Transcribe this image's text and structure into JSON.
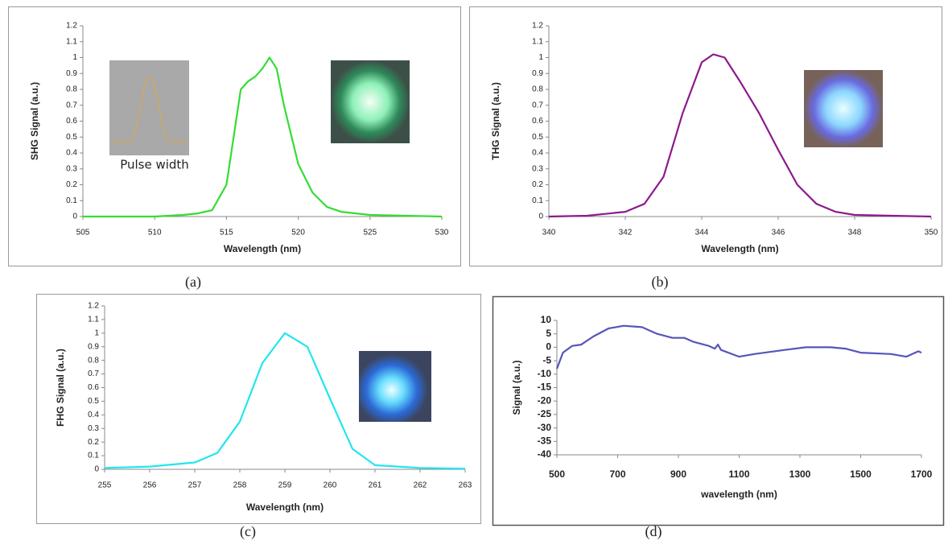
{
  "chart_data": [
    {
      "type": "line",
      "caption": "(a)",
      "xlabel": "Wavelength (nm)",
      "ylabel": "SHG Signal (a.u.)",
      "annotation": "Pulse width",
      "color": "#33dd33",
      "x": [
        505,
        510,
        512,
        513,
        514,
        515,
        516,
        516.5,
        517,
        517.5,
        518,
        518.5,
        519,
        520,
        521,
        522,
        523,
        525,
        530
      ],
      "values": [
        0,
        0,
        0.01,
        0.02,
        0.04,
        0.2,
        0.8,
        0.85,
        0.88,
        0.93,
        1.0,
        0.93,
        0.7,
        0.33,
        0.15,
        0.06,
        0.03,
        0.01,
        0
      ],
      "xlim": [
        505,
        530
      ],
      "xticks": [
        505,
        510,
        515,
        520,
        525,
        530
      ],
      "ylim": [
        0,
        1.2
      ],
      "yticks": [
        0,
        0.1,
        0.2,
        0.3,
        0.4,
        0.5,
        0.6,
        0.7,
        0.8,
        0.9,
        1,
        1.1,
        1.2
      ]
    },
    {
      "type": "line",
      "caption": "(b)",
      "xlabel": "Wavelength (nm)",
      "ylabel": "THG Signal (a.u.)",
      "color": "#8b1a8b",
      "x": [
        340,
        341,
        342,
        342.5,
        343,
        343.5,
        344,
        344.3,
        344.6,
        345,
        345.5,
        346,
        346.5,
        347,
        347.5,
        348,
        350
      ],
      "values": [
        0,
        0.005,
        0.03,
        0.08,
        0.25,
        0.65,
        0.97,
        1.02,
        1.0,
        0.85,
        0.65,
        0.42,
        0.2,
        0.08,
        0.03,
        0.01,
        0
      ],
      "xlim": [
        340,
        350
      ],
      "xticks": [
        340,
        342,
        344,
        346,
        348,
        350
      ],
      "ylim": [
        0,
        1.2
      ],
      "yticks": [
        0,
        0.1,
        0.2,
        0.3,
        0.4,
        0.5,
        0.6,
        0.7,
        0.8,
        0.9,
        1,
        1.1,
        1.2
      ]
    },
    {
      "type": "line",
      "caption": "(c)",
      "xlabel": "Wavelength (nm)",
      "ylabel": "FHG Signal (a.u.)",
      "color": "#22e6ee",
      "x": [
        255,
        256,
        257,
        257.5,
        258,
        258.5,
        259,
        259.5,
        260,
        260.5,
        261,
        262,
        263
      ],
      "values": [
        0.01,
        0.02,
        0.05,
        0.12,
        0.35,
        0.78,
        1.0,
        0.9,
        0.52,
        0.15,
        0.03,
        0.01,
        0.005
      ],
      "xlim": [
        255,
        263
      ],
      "xticks": [
        255,
        256,
        257,
        258,
        259,
        260,
        261,
        262,
        263
      ],
      "ylim": [
        0,
        1.2
      ],
      "yticks": [
        0,
        0.1,
        0.2,
        0.3,
        0.4,
        0.5,
        0.6,
        0.7,
        0.8,
        0.9,
        1,
        1.1,
        1.2
      ]
    },
    {
      "type": "line",
      "caption": "(d)",
      "xlabel": "wavelength (nm)",
      "ylabel": "Signal (a.u.)",
      "color": "#5555bb",
      "x": [
        500,
        520,
        550,
        580,
        620,
        670,
        720,
        780,
        830,
        880,
        920,
        950,
        1000,
        1020,
        1030,
        1040,
        1100,
        1150,
        1250,
        1320,
        1400,
        1450,
        1500,
        1600,
        1650,
        1690,
        1700
      ],
      "values": [
        -8,
        -2,
        0.5,
        1,
        4,
        7,
        8,
        7.5,
        5,
        3.5,
        3.5,
        2,
        0.5,
        -0.5,
        1,
        -1,
        -3.5,
        -2.5,
        -1,
        0,
        0,
        -0.5,
        -2,
        -2.5,
        -3.5,
        -1.5,
        -2
      ],
      "xlim": [
        500,
        1700
      ],
      "xticks": [
        500,
        700,
        900,
        1100,
        1300,
        1500,
        1700
      ],
      "ylim": [
        -40,
        10
      ],
      "yticks": [
        10,
        5,
        0,
        -5,
        -10,
        -15,
        -20,
        -25,
        -30,
        -35,
        -40
      ]
    }
  ]
}
